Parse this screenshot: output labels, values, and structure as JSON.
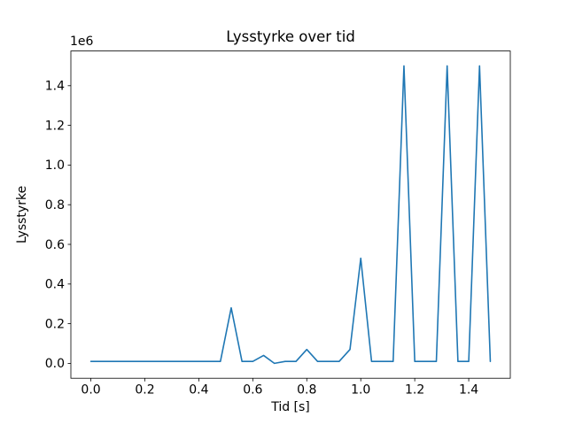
{
  "figure": {
    "background": "#ffffff"
  },
  "chart_data": {
    "type": "line",
    "title": "Lysstyrke over tid",
    "xlabel": "Tid [s]",
    "ylabel": "Lysstyrke",
    "y_offset_label": "1e6",
    "line_color": "#1f77b4",
    "grid": false,
    "legend_position": "none",
    "xlim": [
      -0.074,
      1.554
    ],
    "ylim": [
      -75000,
      1575000
    ],
    "x_ticks": [
      0.0,
      0.2,
      0.4,
      0.6,
      0.8,
      1.0,
      1.2,
      1.4
    ],
    "x_tick_labels": [
      "0.0",
      "0.2",
      "0.4",
      "0.6",
      "0.8",
      "1.0",
      "1.2",
      "1.4"
    ],
    "y_ticks": [
      0,
      200000,
      400000,
      600000,
      800000,
      1000000,
      1200000,
      1400000
    ],
    "y_tick_labels": [
      "0.0",
      "0.2",
      "0.4",
      "0.6",
      "0.8",
      "1.0",
      "1.2",
      "1.4"
    ],
    "x": [
      0.0,
      0.04,
      0.08,
      0.12,
      0.16,
      0.2,
      0.24,
      0.28,
      0.32,
      0.36,
      0.4,
      0.44,
      0.48,
      0.52,
      0.56,
      0.6,
      0.64,
      0.68,
      0.72,
      0.76,
      0.8,
      0.84,
      0.88,
      0.92,
      0.96,
      1.0,
      1.04,
      1.08,
      1.12,
      1.16,
      1.2,
      1.24,
      1.28,
      1.32,
      1.36,
      1.4,
      1.44,
      1.48
    ],
    "y": [
      10000,
      10000,
      10000,
      10000,
      10000,
      10000,
      10000,
      10000,
      10000,
      10000,
      10000,
      10000,
      10000,
      280000,
      10000,
      10000,
      40000,
      0,
      10000,
      10000,
      70000,
      10000,
      10000,
      10000,
      70000,
      530000,
      10000,
      10000,
      10000,
      1500000,
      10000,
      10000,
      10000,
      1500000,
      10000,
      10000,
      1500000,
      10000
    ]
  }
}
